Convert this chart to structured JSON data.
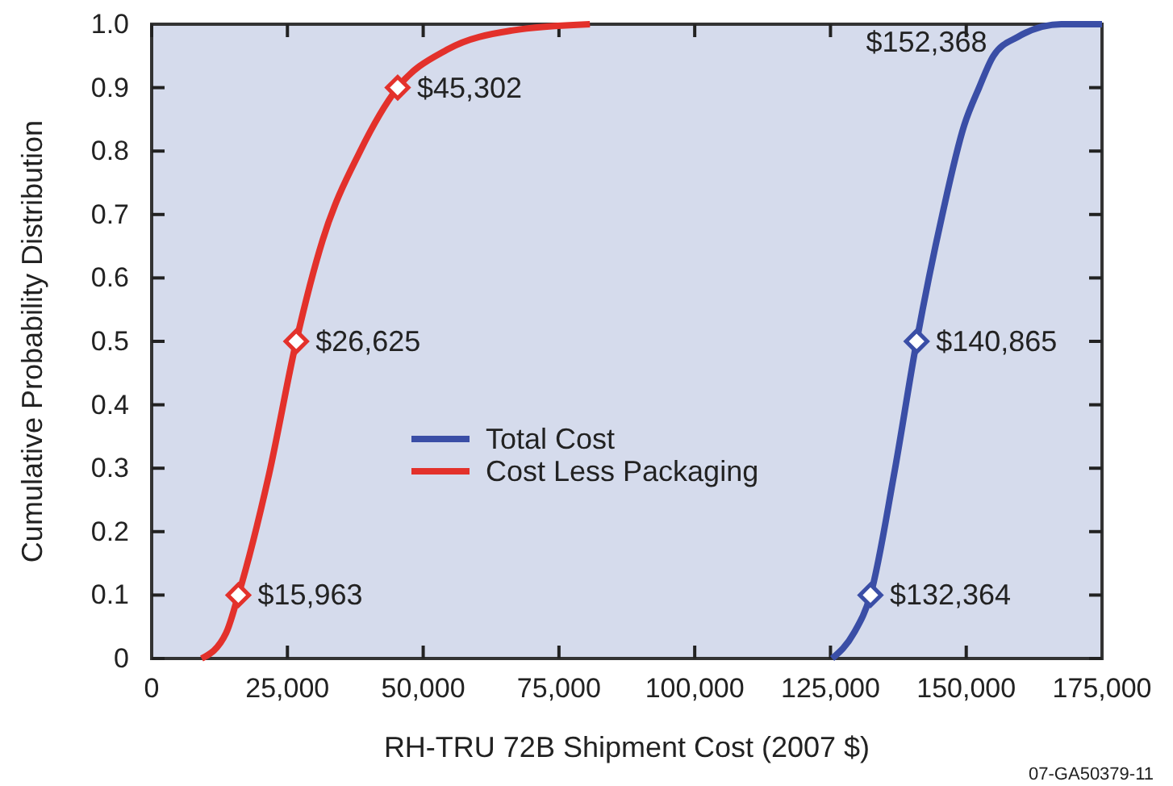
{
  "chart_data": {
    "type": "line",
    "xlabel": "RH-TRU 72B Shipment Cost (2007 $)",
    "ylabel": "Cumulative Probability Distribution",
    "xlim": [
      0,
      175000
    ],
    "xticks": [
      {
        "value": 0,
        "label": "0"
      },
      {
        "value": 25000,
        "label": "25,000"
      },
      {
        "value": 50000,
        "label": "50,000"
      },
      {
        "value": 75000,
        "label": "75,000"
      },
      {
        "value": 100000,
        "label": "100,000"
      },
      {
        "value": 125000,
        "label": "125,000"
      },
      {
        "value": 150000,
        "label": "150,000"
      },
      {
        "value": 175000,
        "label": "175,000"
      }
    ],
    "ylim": [
      0,
      1
    ],
    "yticks": [
      {
        "value": 0,
        "label": "0"
      },
      {
        "value": 0.1,
        "label": "0.1"
      },
      {
        "value": 0.2,
        "label": "0.2"
      },
      {
        "value": 0.3,
        "label": "0.3"
      },
      {
        "value": 0.4,
        "label": "0.4"
      },
      {
        "value": 0.5,
        "label": "0.5"
      },
      {
        "value": 0.6,
        "label": "0.6"
      },
      {
        "value": 0.7,
        "label": "0.7"
      },
      {
        "value": 0.8,
        "label": "0.8"
      },
      {
        "value": 0.9,
        "label": "0.9"
      },
      {
        "value": 1,
        "label": "1.0"
      }
    ],
    "grid": false,
    "legend": "center",
    "line_style": "solid",
    "series": [
      {
        "name": "Total Cost",
        "color": "#3a4ea6",
        "x": [
          125300,
          129300,
          132364,
          136700,
          140865,
          145600,
          149600,
          152368,
          155000,
          159500,
          167500,
          175000
        ],
        "values": [
          0,
          0.04,
          0.1,
          0.29,
          0.5,
          0.7,
          0.84,
          0.9,
          0.95,
          0.98,
          1,
          1
        ]
      },
      {
        "name": "Cost Less Packaging",
        "color": "#e3312b",
        "x": [
          9200,
          13700,
          15963,
          21600,
          26625,
          31500,
          38400,
          45302,
          54400,
          66300,
          80700
        ],
        "values": [
          0,
          0.04,
          0.1,
          0.29,
          0.5,
          0.66,
          0.8,
          0.9,
          0.96,
          0.99,
          1
        ]
      },
      {
        "type": "scatter",
        "marker": "diamond",
        "color": "#3a4ea6",
        "x": [
          132364,
          140865
        ],
        "values": [
          0.1,
          0.5
        ]
      },
      {
        "type": "scatter",
        "marker": "diamond",
        "color": "#e3312b",
        "x": [
          15963,
          26625,
          45302
        ],
        "values": [
          0.1,
          0.5,
          0.9
        ]
      }
    ],
    "annotations": [
      {
        "text": "$15,963",
        "x": 15963,
        "y": 0.1
      },
      {
        "text": "$26,625",
        "x": 26625,
        "y": 0.5
      },
      {
        "text": "$45,302",
        "x": 45302,
        "y": 0.9
      },
      {
        "text": "$132,364",
        "x": 132364,
        "y": 0.1
      },
      {
        "text": "$140,865",
        "x": 140865,
        "y": 0.5
      },
      {
        "text": "$152,368",
        "x": 152368,
        "y": 0.9
      },
      "07-GA50379-11"
    ]
  }
}
